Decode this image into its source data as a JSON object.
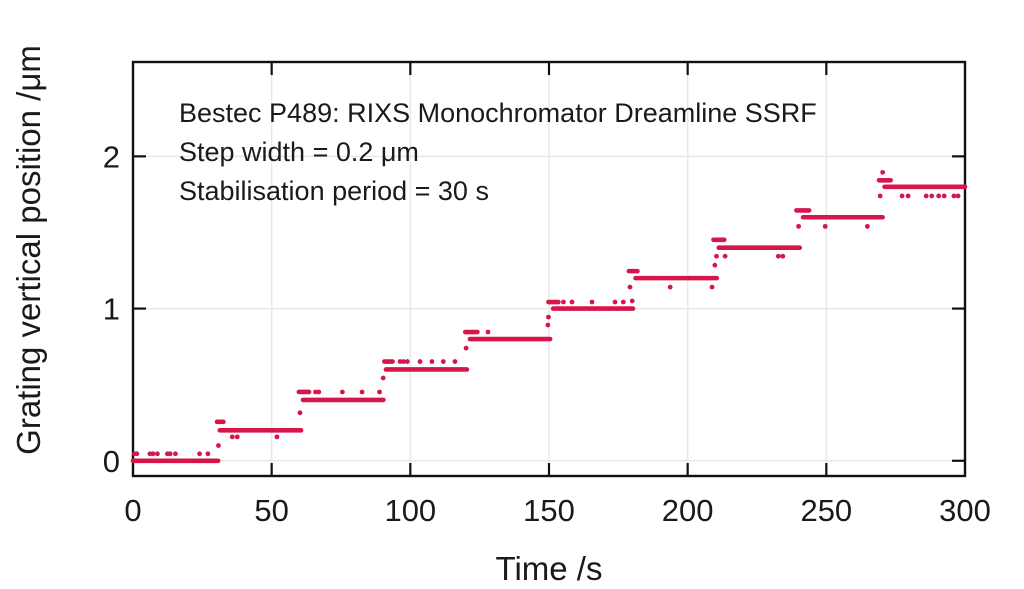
{
  "chart_data": {
    "type": "scatter",
    "title_annotation": [
      "Bestec P489: RIXS Monochromator Dreamline SSRF",
      "Step width = 0.2 μm",
      "Stabilisation period = 30 s"
    ],
    "xlabel": "Time /s",
    "ylabel": "Grating vertical position /μm",
    "xlim": [
      0,
      300
    ],
    "ylim": [
      -0.1,
      2.62
    ],
    "xticks": [
      0,
      50,
      100,
      150,
      200,
      250,
      300
    ],
    "yticks": [
      0,
      1,
      2
    ],
    "grid": true,
    "legend": "none",
    "marker_color": "#d6164b",
    "axis_color": "#111111",
    "grid_color": "#e8e8e8",
    "text_color": "#1a1a1a",
    "step_width_um": 0.2,
    "stabilisation_period_s": 30,
    "steps": [
      {
        "t_start": 0,
        "t_end": 30,
        "level": 0.0
      },
      {
        "t_start": 30,
        "t_end": 60,
        "level": 0.2
      },
      {
        "t_start": 60,
        "t_end": 90,
        "level": 0.4
      },
      {
        "t_start": 90,
        "t_end": 120,
        "level": 0.6
      },
      {
        "t_start": 120,
        "t_end": 150,
        "level": 0.8
      },
      {
        "t_start": 150,
        "t_end": 180,
        "level": 1.0
      },
      {
        "t_start": 180,
        "t_end": 210,
        "level": 1.2
      },
      {
        "t_start": 210,
        "t_end": 240,
        "level": 1.4
      },
      {
        "t_start": 240,
        "t_end": 270,
        "level": 1.6
      },
      {
        "t_start": 270,
        "t_end": 300,
        "level": 1.8
      }
    ],
    "settle_segments": [
      [
        0.0,
        30.7,
        0.0
      ],
      [
        31.3,
        60.6,
        0.2
      ],
      [
        61.3,
        90.3,
        0.4
      ],
      [
        91.2,
        120.4,
        0.6
      ],
      [
        121.5,
        150.4,
        0.8
      ],
      [
        151.5,
        180.3,
        1.0
      ],
      [
        181.2,
        210.5,
        1.2
      ],
      [
        211.2,
        240.4,
        1.4
      ],
      [
        241.6,
        270.3,
        1.6
      ],
      [
        271.0,
        300.0,
        1.8
      ]
    ],
    "overshoot_segments": [
      [
        30.3,
        32.6,
        0.256
      ],
      [
        59.8,
        63.5,
        0.452
      ],
      [
        90.6,
        93.6,
        0.652
      ],
      [
        119.8,
        124.2,
        0.846
      ],
      [
        149.8,
        153.4,
        1.043
      ],
      [
        178.8,
        181.9,
        1.246
      ],
      [
        209.3,
        213.2,
        1.452
      ],
      [
        239.2,
        243.8,
        1.645
      ],
      [
        269.0,
        273.2,
        1.843
      ]
    ],
    "dots": [
      [
        0.5,
        0.046
      ],
      [
        1.4,
        0.046
      ],
      [
        6.1,
        0.046
      ],
      [
        7.2,
        0.046
      ],
      [
        8.8,
        0.046
      ],
      [
        12.4,
        0.046
      ],
      [
        13.4,
        0.046
      ],
      [
        15.3,
        0.046
      ],
      [
        24.0,
        0.046
      ],
      [
        27.0,
        0.046
      ],
      [
        30.8,
        0.1
      ],
      [
        35.8,
        0.157
      ],
      [
        37.6,
        0.157
      ],
      [
        51.9,
        0.157
      ],
      [
        60.2,
        0.315
      ],
      [
        65.8,
        0.452
      ],
      [
        67.0,
        0.452
      ],
      [
        75.5,
        0.452
      ],
      [
        82.6,
        0.452
      ],
      [
        88.9,
        0.452
      ],
      [
        90.2,
        0.544
      ],
      [
        96.3,
        0.652
      ],
      [
        97.5,
        0.652
      ],
      [
        98.9,
        0.652
      ],
      [
        103.5,
        0.652
      ],
      [
        107.8,
        0.652
      ],
      [
        111.9,
        0.652
      ],
      [
        116.1,
        0.652
      ],
      [
        120.1,
        0.74
      ],
      [
        128.0,
        0.846
      ],
      [
        149.6,
        0.892
      ],
      [
        149.8,
        0.944
      ],
      [
        155.2,
        1.043
      ],
      [
        158.3,
        1.043
      ],
      [
        165.5,
        1.043
      ],
      [
        173.8,
        1.043
      ],
      [
        176.8,
        1.043
      ],
      [
        180.0,
        1.05
      ],
      [
        179.2,
        1.141
      ],
      [
        193.7,
        1.141
      ],
      [
        208.8,
        1.141
      ],
      [
        209.8,
        1.285
      ],
      [
        210.4,
        1.344
      ],
      [
        213.5,
        1.344
      ],
      [
        232.7,
        1.344
      ],
      [
        234.3,
        1.344
      ],
      [
        240.0,
        1.54
      ],
      [
        249.6,
        1.54
      ],
      [
        264.8,
        1.54
      ],
      [
        269.4,
        1.74
      ],
      [
        277.3,
        1.74
      ],
      [
        279.5,
        1.74
      ],
      [
        286.0,
        1.74
      ],
      [
        288.0,
        1.74
      ],
      [
        290.5,
        1.74
      ],
      [
        292.5,
        1.74
      ],
      [
        296.0,
        1.74
      ],
      [
        297.5,
        1.74
      ],
      [
        270.3,
        1.895
      ]
    ]
  }
}
